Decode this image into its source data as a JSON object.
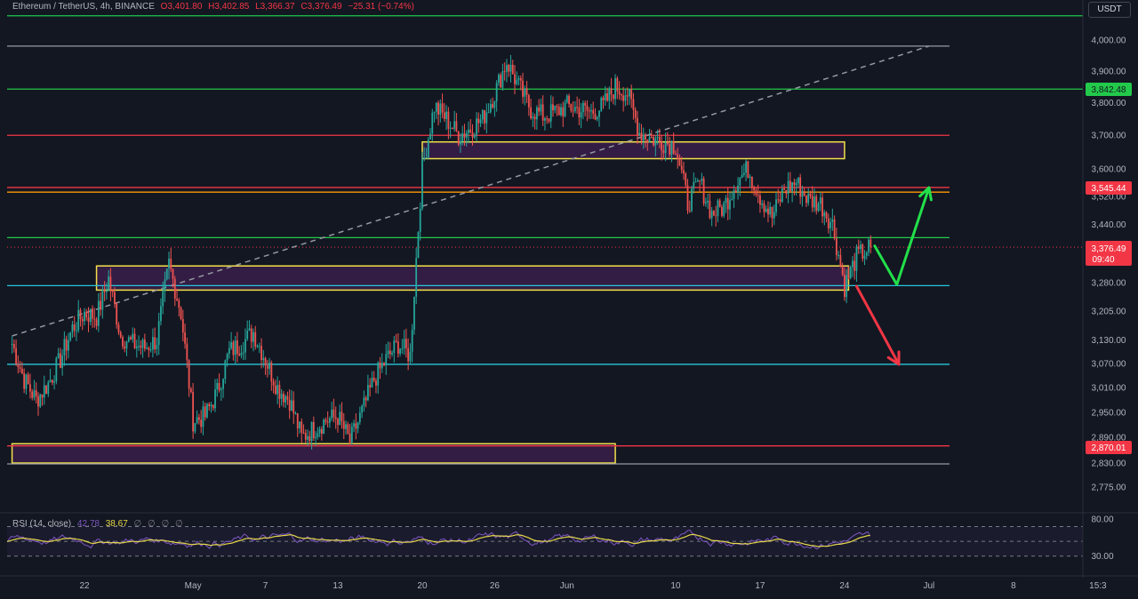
{
  "header": {
    "symbol": "Ethereum / TetherUS, 4h, BINANCE",
    "open": "O3,401.80",
    "high": "H3,402.85",
    "low": "L3,366.37",
    "close": "C3,376.49",
    "change": "−25.31 (−0.74%)"
  },
  "currency_button": "USDT",
  "price_labels": {
    "top_green": "3,842.48",
    "red_resistance": "3,545.44",
    "current": "3,376.49",
    "countdown": "09:40",
    "bottom_red": "2,870.01"
  },
  "rsi_header": {
    "name": "RSI (14, close)",
    "rsi_value": "42.78",
    "ma_value": "38.67",
    "extras": [
      "∅",
      "∅",
      "∅",
      "∅"
    ]
  },
  "colors": {
    "background": "#131722",
    "up": "#26a69a",
    "down": "#ef5350",
    "green_line": "#22c94a",
    "red_line": "#f23645",
    "orange_line": "#ff9800",
    "teal_line": "#26c6da",
    "zone_border": "#f3e04a",
    "zone_fill": "#3a1f4a",
    "rsi_line": "#7e57c2",
    "rsi_ma": "#e6d84a"
  },
  "chart_data": {
    "type": "candlestick",
    "title": "Ethereum / TetherUS, 4h, BINANCE",
    "timeframe": "4h",
    "x_ticks": [
      "22",
      "May",
      "7",
      "13",
      "20",
      "26",
      "Jun",
      "10",
      "17",
      "24",
      "Jul",
      "8",
      "15:3"
    ],
    "y_ticks": [
      "4,000.00",
      "3,900.00",
      "3,800.00",
      "3,700.00",
      "3,600.00",
      "3,520.00",
      "3,440.00",
      "3,280.00",
      "3,205.00",
      "3,130.00",
      "3,070.00",
      "3,010.00",
      "2,950.00",
      "2,890.00",
      "2,830.00",
      "2,775.00"
    ],
    "ylim": [
      2740,
      4080
    ],
    "log_scale": true,
    "grid": false,
    "anchors": [
      [
        "2024-04-16 00:00",
        3120
      ],
      [
        "2024-04-17 00:00",
        3030
      ],
      [
        "2024-04-18 00:00",
        2980
      ],
      [
        "2024-04-19 00:00",
        3020
      ],
      [
        "2024-04-20 00:00",
        3080
      ],
      [
        "2024-04-21 00:00",
        3160
      ],
      [
        "2024-04-22 00:00",
        3200
      ],
      [
        "2024-04-23 00:00",
        3190
      ],
      [
        "2024-04-24 00:00",
        3290
      ],
      [
        "2024-04-25 00:00",
        3140
      ],
      [
        "2024-04-26 00:00",
        3120
      ],
      [
        "2024-04-27 00:00",
        3110
      ],
      [
        "2024-04-28 00:00",
        3130
      ],
      [
        "2024-04-29 00:00",
        3330
      ],
      [
        "2024-04-30 00:00",
        3200
      ],
      [
        "2024-05-01 00:00",
        2930
      ],
      [
        "2024-05-02 00:00",
        2940
      ],
      [
        "2024-05-03 00:00",
        3000
      ],
      [
        "2024-05-04 00:00",
        3100
      ],
      [
        "2024-05-05 00:00",
        3120
      ],
      [
        "2024-05-06 00:00",
        3150
      ],
      [
        "2024-05-07 00:00",
        3080
      ],
      [
        "2024-05-08 00:00",
        3010
      ],
      [
        "2024-05-09 00:00",
        2980
      ],
      [
        "2024-05-10 00:00",
        2890
      ],
      [
        "2024-05-11 00:00",
        2910
      ],
      [
        "2024-05-12 00:00",
        2930
      ],
      [
        "2024-05-13 00:00",
        2940
      ],
      [
        "2024-05-14 00:00",
        2880
      ],
      [
        "2024-05-15 00:00",
        2950
      ],
      [
        "2024-05-16 00:00",
        3030
      ],
      [
        "2024-05-17 00:00",
        3080
      ],
      [
        "2024-05-18 00:00",
        3120
      ],
      [
        "2024-05-19 00:00",
        3090
      ],
      [
        "2024-05-20 00:00",
        3600
      ],
      [
        "2024-05-21 00:00",
        3790
      ],
      [
        "2024-05-22 00:00",
        3750
      ],
      [
        "2024-05-23 00:00",
        3700
      ],
      [
        "2024-05-24 00:00",
        3720
      ],
      [
        "2024-05-25 00:00",
        3750
      ],
      [
        "2024-05-26 00:00",
        3830
      ],
      [
        "2024-05-27 00:00",
        3930
      ],
      [
        "2024-05-28 00:00",
        3850
      ],
      [
        "2024-05-29 00:00",
        3780
      ],
      [
        "2024-05-30 00:00",
        3760
      ],
      [
        "2024-05-31 00:00",
        3770
      ],
      [
        "2024-06-01 00:00",
        3790
      ],
      [
        "2024-06-02 00:00",
        3780
      ],
      [
        "2024-06-03 00:00",
        3770
      ],
      [
        "2024-06-04 00:00",
        3790
      ],
      [
        "2024-06-05 00:00",
        3850
      ],
      [
        "2024-06-06 00:00",
        3830
      ],
      [
        "2024-06-07 00:00",
        3710
      ],
      [
        "2024-06-08 00:00",
        3690
      ],
      [
        "2024-06-09 00:00",
        3680
      ],
      [
        "2024-06-10 00:00",
        3670
      ],
      [
        "2024-06-11 00:00",
        3500
      ],
      [
        "2024-06-12 00:00",
        3560
      ],
      [
        "2024-06-13 00:00",
        3470
      ],
      [
        "2024-06-14 00:00",
        3490
      ],
      [
        "2024-06-15 00:00",
        3560
      ],
      [
        "2024-06-16 00:00",
        3600
      ],
      [
        "2024-06-17 00:00",
        3520
      ],
      [
        "2024-06-18 00:00",
        3460
      ],
      [
        "2024-06-19 00:00",
        3540
      ],
      [
        "2024-06-20 00:00",
        3560
      ],
      [
        "2024-06-21 00:00",
        3510
      ],
      [
        "2024-06-22 00:00",
        3500
      ],
      [
        "2024-06-23 00:00",
        3440
      ],
      [
        "2024-06-24 00:00",
        3270
      ],
      [
        "2024-06-25 00:00",
        3350
      ],
      [
        "2024-06-26 04:00",
        3376.49
      ]
    ],
    "horizontal_levels": [
      {
        "price": 4080,
        "color": "green"
      },
      {
        "price": 3842.48,
        "color": "green"
      },
      {
        "price": 3700,
        "color": "red"
      },
      {
        "price": 3545.44,
        "color": "red"
      },
      {
        "price": 3532,
        "color": "orange"
      },
      {
        "price": 3403,
        "color": "green"
      },
      {
        "price": 3272,
        "color": "teal"
      },
      {
        "price": 3068,
        "color": "teal"
      },
      {
        "price": 2870.01,
        "color": "red"
      },
      {
        "price": 2828,
        "color": "gray"
      },
      {
        "price": 3980,
        "color": "gray"
      }
    ],
    "zones": [
      {
        "from": "2024-05-20 00:00",
        "to": "2024-06-24 00:00",
        "low": 3630,
        "high": 3680
      },
      {
        "from": "2024-04-23 00:00",
        "to": "2024-06-24 08:00",
        "low": 3260,
        "high": 3325
      },
      {
        "from": "2024-04-16 00:00",
        "to": "2024-06-05 00:00",
        "low": 2830,
        "high": 2875
      }
    ],
    "trendline": {
      "from": [
        "2024-04-16 00:00",
        3140
      ],
      "to": [
        "2024-07-01 00:00",
        3980
      ]
    },
    "arrows": [
      {
        "color": "green",
        "points": [
          [
            "2024-06-26 12:00",
            3380
          ],
          [
            "2024-06-28 08:00",
            3275
          ],
          [
            "2024-07-01 00:00",
            3545
          ]
        ]
      },
      {
        "color": "red",
        "points": [
          [
            "2024-06-25 00:00",
            3270
          ],
          [
            "2024-06-28 12:00",
            3068
          ]
        ]
      }
    ],
    "rsi": {
      "period": 14,
      "value": 42.78,
      "ma": 38.67,
      "levels": [
        30,
        50,
        70
      ],
      "ylim": [
        20,
        85
      ],
      "y_ticks": [
        "80.00",
        "30.00"
      ]
    }
  }
}
